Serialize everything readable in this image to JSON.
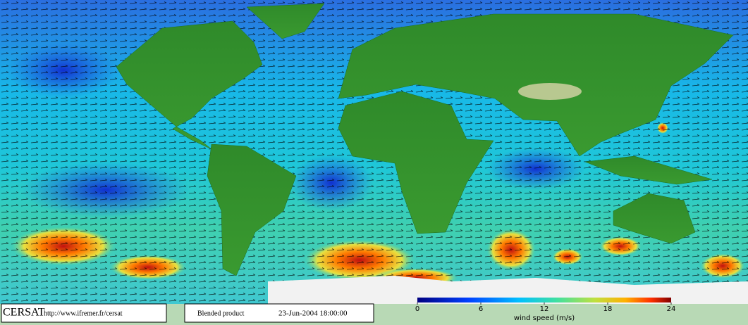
{
  "footer": {
    "logo": "CERSAT",
    "url": "http://www.ifremer.fr/cersat",
    "product": "Blended product",
    "timestamp": "23-Jun-2004 18:00:00"
  },
  "colorbar": {
    "label": "wind speed (m/s)",
    "range": [
      0,
      24
    ],
    "ticks": [
      0,
      6,
      12,
      18,
      24
    ]
  }
}
